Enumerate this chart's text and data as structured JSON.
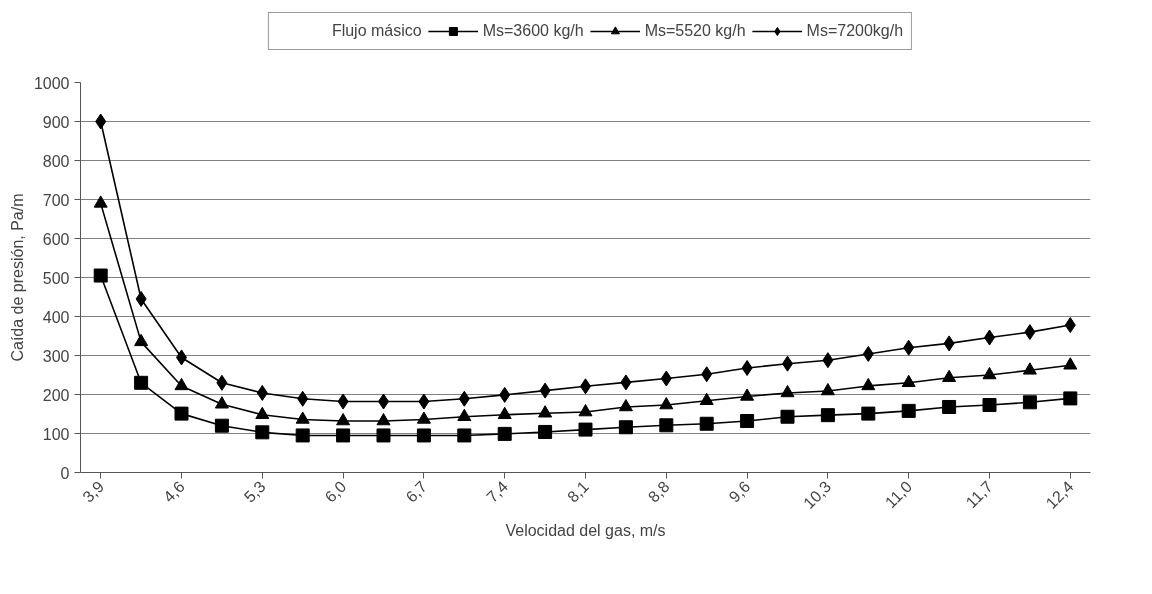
{
  "chart_data": {
    "type": "line",
    "xlabel": "Velocidad del gas, m/s",
    "ylabel": "Caída de presión, Pa/m",
    "legend_title": "Flujo másico",
    "categories": [
      "3,9",
      null,
      "4,6",
      null,
      "5,3",
      null,
      "6,0",
      null,
      "6,7",
      null,
      "7,4",
      null,
      "8,1",
      null,
      "8,8",
      null,
      "9,6",
      null,
      "10,3",
      null,
      "11,0",
      null,
      "11,7",
      null,
      "12,4"
    ],
    "series": [
      {
        "name": "Ms=3600 kg/h",
        "color": "#000000",
        "marker": "square",
        "values": [
          505,
          230,
          151,
          120,
          103,
          95,
          95,
          95,
          95,
          95,
          99,
          104,
          110,
          116,
          121,
          125,
          132,
          143,
          147,
          151,
          158,
          168,
          173,
          180,
          190
        ]
      },
      {
        "name": "Ms=5520 kg/h",
        "color": "#000000",
        "marker": "triangle",
        "values": [
          690,
          335,
          222,
          175,
          148,
          136,
          132,
          132,
          136,
          143,
          148,
          152,
          155,
          168,
          173,
          184,
          195,
          204,
          209,
          222,
          230,
          243,
          250,
          262,
          275
        ]
      },
      {
        "name": "Ms=7200kg/h",
        "color": "#000000",
        "marker": "diamond",
        "values": [
          900,
          445,
          295,
          230,
          204,
          189,
          182,
          182,
          182,
          189,
          199,
          210,
          221,
          231,
          241,
          252,
          268,
          279,
          288,
          304,
          320,
          331,
          346,
          360,
          378
        ]
      }
    ],
    "ylim": [
      0,
      1000
    ],
    "yticks": [
      0,
      100,
      200,
      300,
      400,
      500,
      600,
      700,
      800,
      900,
      1000
    ],
    "grid": "y",
    "legend": "top",
    "line_style": "solid"
  }
}
